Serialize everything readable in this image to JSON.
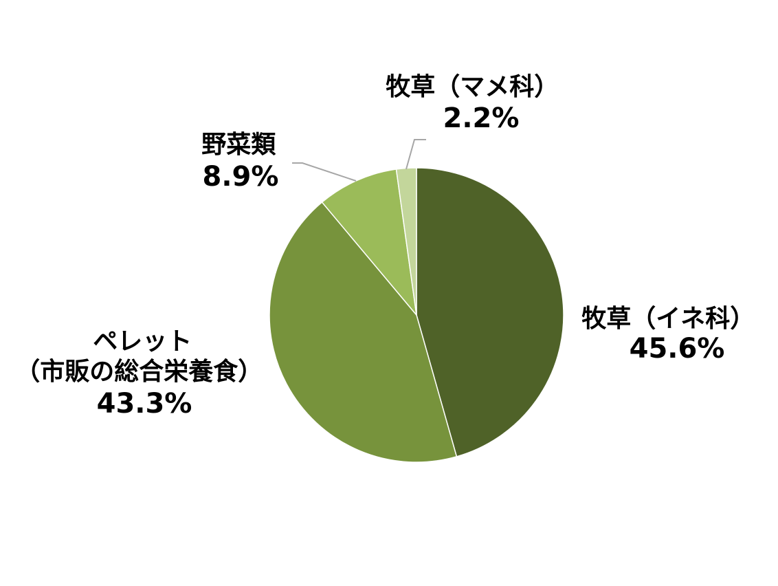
{
  "chart_data": {
    "type": "pie",
    "title": "",
    "start_angle_deg": 0,
    "direction": "clockwise",
    "slices": [
      {
        "name_lines": [
          "牧草（イネ科）"
        ],
        "value": 45.6,
        "value_label": "45.6%",
        "color": "#4f6228"
      },
      {
        "name_lines": [
          "ペレット",
          "（市販の総合栄養食）"
        ],
        "value": 43.3,
        "value_label": "43.3%",
        "color": "#77933c"
      },
      {
        "name_lines": [
          "野菜類"
        ],
        "value": 8.9,
        "value_label": "8.9%",
        "color": "#9bbb59"
      },
      {
        "name_lines": [
          "牧草（マメ科）"
        ],
        "value": 2.2,
        "value_label": "2.2%",
        "color": "#c3d69b"
      }
    ],
    "leader_line_color": "#a6a6a6",
    "legend": "none"
  }
}
